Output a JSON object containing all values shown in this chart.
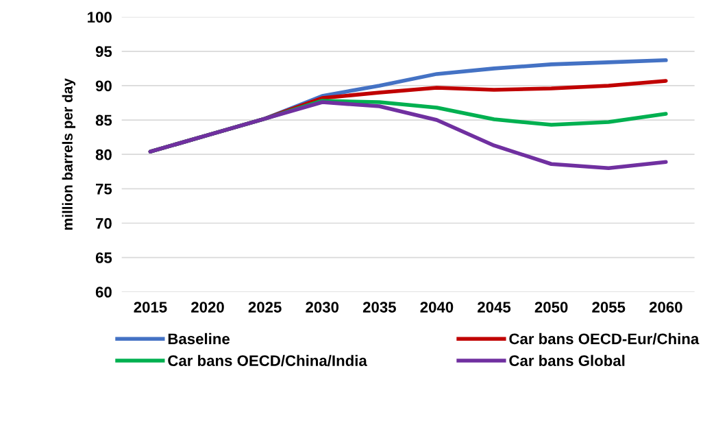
{
  "chart_data": {
    "type": "line",
    "ylabel": "million barrels per day",
    "categories": [
      "2015",
      "2020",
      "2025",
      "2030",
      "2035",
      "2040",
      "2045",
      "2050",
      "2055",
      "2060"
    ],
    "series": [
      {
        "name": "Baseline",
        "color": "#4472c4",
        "values": [
          80.4,
          82.8,
          85.2,
          88.5,
          90.0,
          91.7,
          92.5,
          93.1,
          93.4,
          93.7
        ]
      },
      {
        "name": "Car bans OECD-Eur/China",
        "color": "#c00000",
        "values": [
          80.4,
          82.8,
          85.2,
          88.2,
          89.0,
          89.7,
          89.4,
          89.6,
          90.0,
          90.7
        ]
      },
      {
        "name": "Car bans OECD/China/India",
        "color": "#00b050",
        "values": [
          80.4,
          82.8,
          85.2,
          87.8,
          87.6,
          86.8,
          85.1,
          84.3,
          84.7,
          85.9
        ]
      },
      {
        "name": "Car bans Global",
        "color": "#7030a0",
        "values": [
          80.4,
          82.8,
          85.2,
          87.6,
          87.0,
          85.0,
          81.3,
          78.6,
          78.0,
          78.9
        ]
      }
    ],
    "ylim": [
      60,
      100
    ],
    "yticks": [
      60,
      65,
      70,
      75,
      80,
      85,
      90,
      95,
      100
    ],
    "grid": "y",
    "legend": "bottom",
    "marker": "none",
    "line_style": "solid"
  }
}
